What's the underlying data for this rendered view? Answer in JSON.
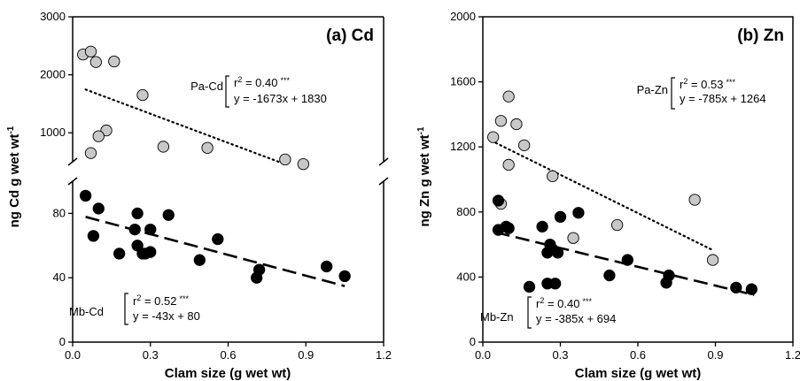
{
  "chart_data": [
    {
      "type": "scatter",
      "panel_label": "(a) Cd",
      "xlabel": "Clam size (g wet wt)",
      "ylabel_main": "ng Cd g wet wt",
      "ylabel_sup": "-1",
      "x_ticks": [
        "0.0",
        "0.3",
        "0.6",
        "0.9",
        "1.2"
      ],
      "xlim": [
        0,
        1.2
      ],
      "broken_axis": true,
      "y_ticks_upper": [
        "1000",
        "2000",
        "3000"
      ],
      "ylim_upper": [
        500,
        3000
      ],
      "y_ticks_lower": [
        "0",
        "40",
        "80"
      ],
      "ylim_lower": [
        0,
        100
      ],
      "series": [
        {
          "name": "Pa-Cd",
          "color": "#c8c8c8",
          "segment": "upper",
          "trend": {
            "style": "dotted",
            "x_range": [
              0.05,
              0.82
            ],
            "slope": -1673,
            "intercept": 1830
          },
          "ann_label": "Pa-Cd",
          "ann_r2_prefix": "r",
          "ann_r2_sup": "2",
          "ann_r2_value": " = 0.40",
          "ann_stars": "***",
          "ann_eq": "y = -1673x + 1830",
          "points": [
            [
              0.04,
              2350
            ],
            [
              0.07,
              2400
            ],
            [
              0.09,
              2220
            ],
            [
              0.16,
              2230
            ],
            [
              0.27,
              1650
            ],
            [
              0.13,
              1040
            ],
            [
              0.1,
              940
            ],
            [
              0.07,
              650
            ],
            [
              0.35,
              760
            ],
            [
              0.52,
              740
            ],
            [
              0.82,
              540
            ],
            [
              0.89,
              460
            ]
          ]
        },
        {
          "name": "Mb-Cd",
          "color": "#000000",
          "segment": "lower",
          "trend": {
            "style": "dashed",
            "x_range": [
              0.05,
              1.05
            ],
            "slope": -43,
            "intercept": 80
          },
          "ann_label": "Mb-Cd",
          "ann_r2_prefix": "r",
          "ann_r2_sup": "2",
          "ann_r2_value": " = 0.52",
          "ann_stars": "***",
          "ann_eq": "y = -43x + 80",
          "points": [
            [
              0.05,
              91
            ],
            [
              0.1,
              83
            ],
            [
              0.08,
              66
            ],
            [
              0.18,
              55
            ],
            [
              0.24,
              70
            ],
            [
              0.25,
              80
            ],
            [
              0.25,
              60
            ],
            [
              0.27,
              55
            ],
            [
              0.28,
              55
            ],
            [
              0.3,
              70
            ],
            [
              0.3,
              56
            ],
            [
              0.37,
              79
            ],
            [
              0.56,
              64
            ],
            [
              0.49,
              51
            ],
            [
              0.71,
              40
            ],
            [
              0.72,
              45
            ],
            [
              0.98,
              47
            ],
            [
              1.05,
              41
            ]
          ]
        }
      ]
    },
    {
      "type": "scatter",
      "panel_label": "(b) Zn",
      "xlabel": "Clam size (g wet wt)",
      "ylabel_main": "ng Zn g wet wt",
      "ylabel_sup": "-1",
      "x_ticks": [
        "0.0",
        "0.3",
        "0.6",
        "0.9",
        "1.2"
      ],
      "xlim": [
        0,
        1.2
      ],
      "y_ticks": [
        "0",
        "400",
        "800",
        "1200",
        "1600",
        "2000"
      ],
      "ylim": [
        0,
        2000
      ],
      "series": [
        {
          "name": "Pa-Zn",
          "color": "#c8c8c8",
          "trend": {
            "style": "dotted",
            "x_range": [
              0.05,
              0.89
            ],
            "slope": -785,
            "intercept": 1264
          },
          "ann_label": "Pa-Zn",
          "ann_r2_prefix": "r",
          "ann_r2_sup": "2",
          "ann_r2_value": " = 0.53",
          "ann_stars": "***",
          "ann_eq": "y = -785x + 1264",
          "points": [
            [
              0.04,
              1260
            ],
            [
              0.07,
              1360
            ],
            [
              0.1,
              1510
            ],
            [
              0.1,
              1090
            ],
            [
              0.13,
              1340
            ],
            [
              0.16,
              1210
            ],
            [
              0.27,
              1020
            ],
            [
              0.07,
              850
            ],
            [
              0.35,
              640
            ],
            [
              0.52,
              720
            ],
            [
              0.82,
              875
            ],
            [
              0.89,
              505
            ]
          ]
        },
        {
          "name": "Mb-Zn",
          "color": "#000000",
          "trend": {
            "style": "dashed",
            "x_range": [
              0.05,
              1.05
            ],
            "slope": -385,
            "intercept": 694
          },
          "ann_label": "Mb-Zn",
          "ann_r2_prefix": "r",
          "ann_r2_sup": "2",
          "ann_r2_value": " = 0.40",
          "ann_stars": "***",
          "ann_eq": "y = -385x + 694",
          "points": [
            [
              0.06,
              870
            ],
            [
              0.06,
              690
            ],
            [
              0.09,
              710
            ],
            [
              0.1,
              700
            ],
            [
              0.18,
              340
            ],
            [
              0.23,
              710
            ],
            [
              0.25,
              550
            ],
            [
              0.25,
              360
            ],
            [
              0.26,
              600
            ],
            [
              0.27,
              570
            ],
            [
              0.28,
              360
            ],
            [
              0.29,
              550
            ],
            [
              0.3,
              770
            ],
            [
              0.37,
              795
            ],
            [
              0.49,
              410
            ],
            [
              0.56,
              505
            ],
            [
              0.71,
              365
            ],
            [
              0.72,
              410
            ],
            [
              0.98,
              335
            ],
            [
              1.04,
              325
            ]
          ]
        }
      ]
    }
  ]
}
